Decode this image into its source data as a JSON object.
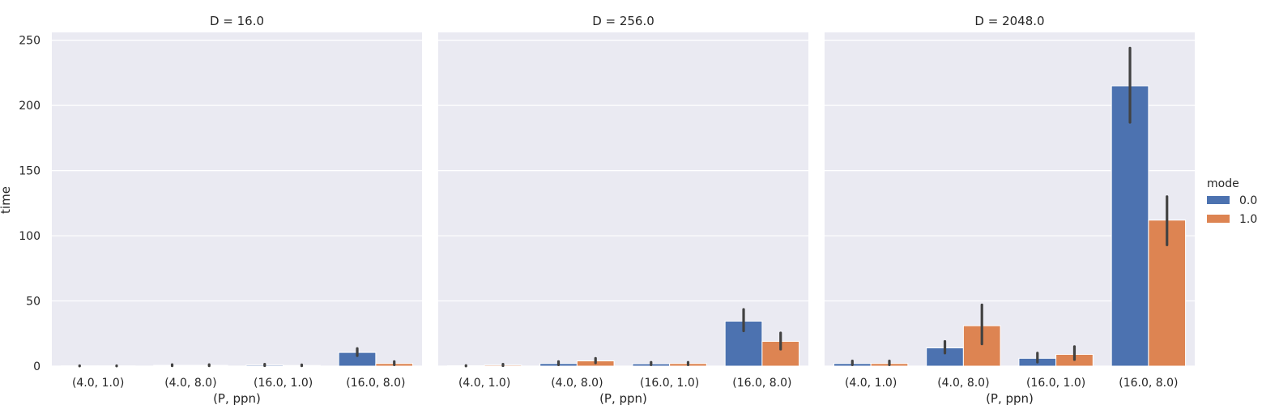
{
  "chart_data": {
    "type": "bar",
    "ylabel": "time",
    "xlabel": "(P, ppn)",
    "ylim": [
      0,
      250
    ],
    "yticks": [
      0,
      50,
      100,
      150,
      200,
      250
    ],
    "grid": true,
    "legend_position": "right",
    "legend_title": "mode",
    "categories": [
      "(4.0, 1.0)",
      "(4.0, 8.0)",
      "(16.0, 1.0)",
      "(16.0, 8.0)"
    ],
    "panels": [
      {
        "title": "D = 16.0",
        "series": [
          {
            "name": "0.0",
            "color": "#4c72b0",
            "values": [
              0.2,
              0.6,
              0.8,
              10.5
            ],
            "err_low": [
              0.1,
              0.2,
              0.3,
              8.0
            ],
            "err_high": [
              0.3,
              1.2,
              1.5,
              13.5
            ]
          },
          {
            "name": "1.0",
            "color": "#dd8452",
            "values": [
              0.2,
              0.6,
              0.5,
              2.0
            ],
            "err_low": [
              0.1,
              0.2,
              0.2,
              1.0
            ],
            "err_high": [
              0.3,
              1.2,
              1.0,
              3.5
            ]
          }
        ]
      },
      {
        "title": "D = 256.0",
        "series": [
          {
            "name": "0.0",
            "color": "#4c72b0",
            "values": [
              0.3,
              2.0,
              1.8,
              34.5
            ],
            "err_low": [
              0.1,
              1.0,
              1.0,
              27.0
            ],
            "err_high": [
              0.5,
              3.5,
              3.0,
              43.5
            ]
          },
          {
            "name": "1.0",
            "color": "#dd8452",
            "values": [
              0.8,
              4.0,
              2.0,
              19.0
            ],
            "err_low": [
              0.3,
              2.5,
              1.0,
              13.0
            ],
            "err_high": [
              1.5,
              6.0,
              3.0,
              25.5
            ]
          }
        ]
      },
      {
        "title": "D = 2048.0",
        "series": [
          {
            "name": "0.0",
            "color": "#4c72b0",
            "values": [
              2.0,
              14.0,
              6.0,
              215.0
            ],
            "err_low": [
              1.0,
              10.0,
              3.0,
              187.0
            ],
            "err_high": [
              4.0,
              19.0,
              10.0,
              244.0
            ]
          },
          {
            "name": "1.0",
            "color": "#dd8452",
            "values": [
              2.0,
              31.0,
              9.0,
              112.0
            ],
            "err_low": [
              1.0,
              17.0,
              5.0,
              93.0
            ],
            "err_high": [
              4.0,
              47.0,
              15.0,
              130.0
            ]
          }
        ]
      }
    ]
  }
}
